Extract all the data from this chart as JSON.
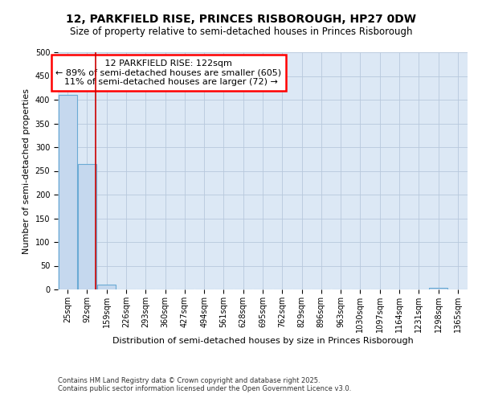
{
  "title": "12, PARKFIELD RISE, PRINCES RISBOROUGH, HP27 0DW",
  "subtitle": "Size of property relative to semi-detached houses in Princes Risborough",
  "xlabel": "Distribution of semi-detached houses by size in Princes Risborough",
  "ylabel": "Number of semi-detached properties",
  "footnote1": "Contains HM Land Registry data © Crown copyright and database right 2025.",
  "footnote2": "Contains public sector information licensed under the Open Government Licence v3.0.",
  "bins": [
    "25sqm",
    "92sqm",
    "159sqm",
    "226sqm",
    "293sqm",
    "360sqm",
    "427sqm",
    "494sqm",
    "561sqm",
    "628sqm",
    "695sqm",
    "762sqm",
    "829sqm",
    "896sqm",
    "963sqm",
    "1030sqm",
    "1097sqm",
    "1164sqm",
    "1231sqm",
    "1298sqm",
    "1365sqm"
  ],
  "values": [
    410,
    265,
    10,
    0,
    0,
    0,
    0,
    0,
    0,
    0,
    0,
    0,
    0,
    0,
    0,
    0,
    0,
    0,
    0,
    3,
    0
  ],
  "bar_color": "#c5d8ee",
  "bar_edge_color": "#6aaad4",
  "property_size": 122,
  "property_label": "12 PARKFIELD RISE: 122sqm",
  "pct_smaller": 89,
  "count_smaller": 605,
  "pct_larger": 11,
  "count_larger": 72,
  "vline_color": "#cc0000",
  "ylim": [
    0,
    500
  ],
  "yticks": [
    0,
    50,
    100,
    150,
    200,
    250,
    300,
    350,
    400,
    450,
    500
  ],
  "background_color": "#ffffff",
  "grid_color": "#b8c8dc",
  "title_fontsize": 10,
  "subtitle_fontsize": 8.5,
  "axis_label_fontsize": 8,
  "tick_fontsize": 7,
  "footnote_fontsize": 6,
  "annot_fontsize": 8
}
